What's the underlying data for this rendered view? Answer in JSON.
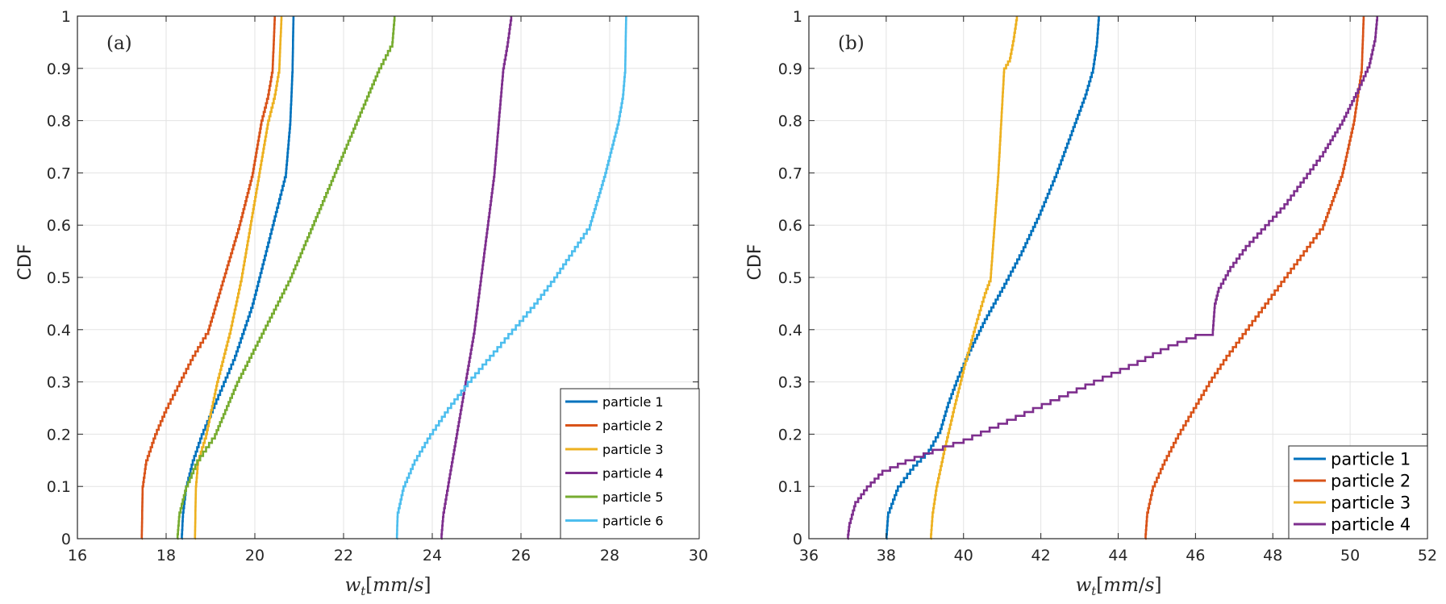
{
  "chart_data": [
    {
      "type": "line",
      "panel_label": "(a)",
      "xlabel": "w_t[mm/s]",
      "ylabel": "CDF",
      "xlim": [
        16,
        30
      ],
      "ylim": [
        0,
        1
      ],
      "xticks": [
        16,
        18,
        20,
        22,
        24,
        26,
        28,
        30
      ],
      "yticks": [
        0,
        0.1,
        0.2,
        0.3,
        0.4,
        0.5,
        0.6,
        0.7,
        0.8,
        0.9,
        1
      ],
      "grid": true,
      "legend_position": "bottom-right",
      "series": [
        {
          "name": "particle 1",
          "color": "#0072BD",
          "x": [
            18.35,
            18.38,
            18.45,
            18.6,
            18.8,
            19.05,
            19.3,
            19.55,
            19.75,
            19.95,
            20.1,
            20.25,
            20.4,
            20.55,
            20.7,
            20.8,
            20.85,
            20.87
          ],
          "y": [
            0,
            0.05,
            0.1,
            0.15,
            0.2,
            0.25,
            0.3,
            0.35,
            0.4,
            0.45,
            0.5,
            0.55,
            0.6,
            0.65,
            0.7,
            0.8,
            0.9,
            1
          ]
        },
        {
          "name": "particle 2",
          "color": "#D95319",
          "x": [
            17.45,
            17.47,
            17.55,
            17.75,
            18.0,
            18.3,
            18.6,
            18.95,
            19.3,
            19.65,
            19.95,
            20.15,
            20.3,
            20.4,
            20.45
          ],
          "y": [
            0,
            0.1,
            0.15,
            0.2,
            0.25,
            0.3,
            0.35,
            0.4,
            0.5,
            0.6,
            0.7,
            0.8,
            0.85,
            0.9,
            1
          ]
        },
        {
          "name": "particle 3",
          "color": "#EDB120",
          "x": [
            18.65,
            18.67,
            18.72,
            18.9,
            19.15,
            19.45,
            19.7,
            19.9,
            20.1,
            20.3,
            20.45,
            20.55,
            20.6
          ],
          "y": [
            0,
            0.1,
            0.15,
            0.2,
            0.3,
            0.4,
            0.5,
            0.6,
            0.7,
            0.8,
            0.85,
            0.9,
            1
          ]
        },
        {
          "name": "particle 4",
          "color": "#7E2F8E",
          "x": [
            24.2,
            24.25,
            24.35,
            24.55,
            24.75,
            24.95,
            25.1,
            25.25,
            25.4,
            25.5,
            25.6,
            25.7,
            25.78
          ],
          "y": [
            0,
            0.05,
            0.1,
            0.2,
            0.3,
            0.4,
            0.5,
            0.6,
            0.7,
            0.8,
            0.9,
            0.95,
            1
          ]
        },
        {
          "name": "particle 5",
          "color": "#77AC30",
          "x": [
            18.25,
            18.3,
            18.45,
            18.7,
            19.1,
            19.6,
            20.2,
            20.8,
            21.3,
            21.8,
            22.3,
            22.8,
            23.1,
            23.15
          ],
          "y": [
            0,
            0.05,
            0.1,
            0.15,
            0.2,
            0.3,
            0.4,
            0.5,
            0.6,
            0.7,
            0.8,
            0.9,
            0.95,
            1
          ]
        },
        {
          "name": "particle 6",
          "color": "#4DBEEE",
          "x": [
            23.2,
            23.22,
            23.35,
            23.6,
            23.95,
            24.35,
            24.8,
            25.3,
            25.8,
            26.3,
            26.75,
            27.15,
            27.55,
            27.9,
            28.2,
            28.3,
            28.35,
            28.37
          ],
          "y": [
            0,
            0.05,
            0.1,
            0.15,
            0.2,
            0.25,
            0.3,
            0.35,
            0.4,
            0.45,
            0.5,
            0.55,
            0.6,
            0.7,
            0.8,
            0.85,
            0.9,
            1
          ]
        }
      ]
    },
    {
      "type": "line",
      "panel_label": "(b)",
      "xlabel": "w_t[mm/s]",
      "ylabel": "CDF",
      "xlim": [
        36,
        52
      ],
      "ylim": [
        0,
        1
      ],
      "xticks": [
        36,
        38,
        40,
        42,
        44,
        46,
        48,
        50,
        52
      ],
      "yticks": [
        0,
        0.1,
        0.2,
        0.3,
        0.4,
        0.5,
        0.6,
        0.7,
        0.8,
        0.9,
        1
      ],
      "grid": true,
      "legend_position": "bottom-right",
      "series": [
        {
          "name": "particle 1",
          "color": "#0072BD",
          "x": [
            38.0,
            38.05,
            38.3,
            38.7,
            39.1,
            39.4,
            39.6,
            39.85,
            40.15,
            40.55,
            41.0,
            41.5,
            41.95,
            42.4,
            42.8,
            43.15,
            43.35,
            43.45,
            43.5
          ],
          "y": [
            0,
            0.05,
            0.1,
            0.14,
            0.17,
            0.21,
            0.26,
            0.31,
            0.36,
            0.42,
            0.48,
            0.55,
            0.62,
            0.7,
            0.78,
            0.85,
            0.9,
            0.95,
            1
          ]
        },
        {
          "name": "particle 2",
          "color": "#D95319",
          "x": [
            44.7,
            44.75,
            44.9,
            45.2,
            45.55,
            45.95,
            46.35,
            46.8,
            47.3,
            47.8,
            48.3,
            48.8,
            49.3,
            49.8,
            50.1,
            50.3,
            50.35
          ],
          "y": [
            0,
            0.05,
            0.1,
            0.15,
            0.2,
            0.25,
            0.3,
            0.35,
            0.4,
            0.45,
            0.5,
            0.55,
            0.6,
            0.7,
            0.8,
            0.9,
            1
          ]
        },
        {
          "name": "particle 3",
          "color": "#EDB120",
          "x": [
            39.15,
            39.2,
            39.3,
            39.5,
            39.75,
            40.05,
            40.35,
            40.55,
            40.7,
            40.8,
            40.9,
            41.05,
            41.2,
            41.3,
            41.38
          ],
          "y": [
            0,
            0.05,
            0.1,
            0.17,
            0.25,
            0.34,
            0.42,
            0.47,
            0.5,
            0.6,
            0.7,
            0.9,
            0.92,
            0.96,
            1
          ]
        },
        {
          "name": "particle 4",
          "color": "#7E2F8E",
          "x": [
            37.0,
            37.05,
            37.2,
            37.5,
            37.9,
            38.5,
            39.2,
            40.0,
            40.9,
            41.8,
            42.7,
            43.6,
            44.5,
            45.3,
            46.0,
            46.45,
            46.5,
            46.6,
            46.9,
            47.3,
            47.8,
            48.3,
            48.8,
            49.3,
            49.8,
            50.2,
            50.5,
            50.65,
            50.7
          ],
          "y": [
            0,
            0.03,
            0.07,
            0.1,
            0.13,
            0.15,
            0.17,
            0.19,
            0.22,
            0.25,
            0.28,
            0.31,
            0.34,
            0.37,
            0.39,
            0.4,
            0.45,
            0.48,
            0.52,
            0.56,
            0.6,
            0.64,
            0.69,
            0.74,
            0.8,
            0.86,
            0.91,
            0.96,
            1
          ]
        }
      ]
    }
  ]
}
